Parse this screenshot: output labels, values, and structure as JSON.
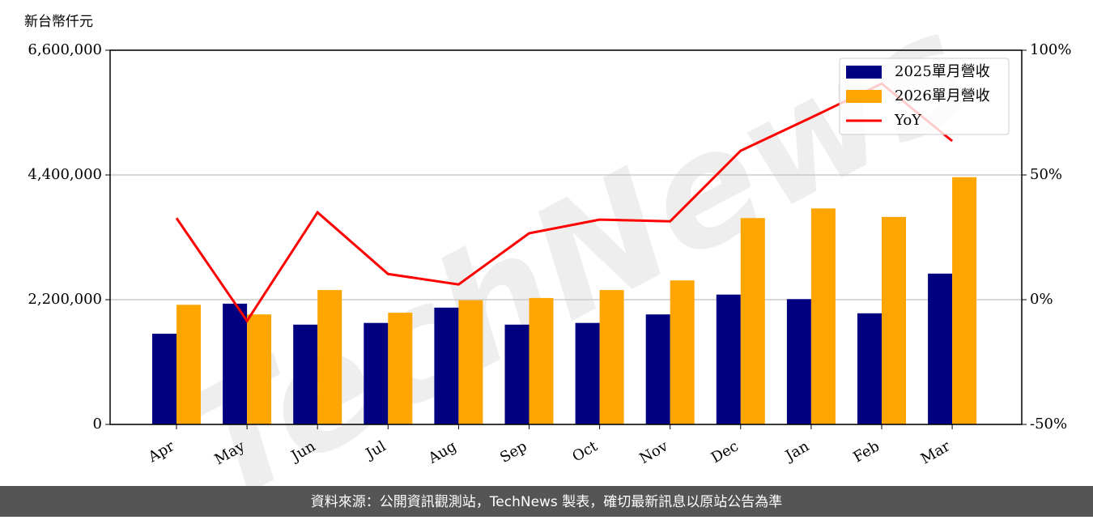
{
  "chart_data": {
    "type": "bar_line",
    "y_label": "新台幣仟元",
    "watermark": "TechNews",
    "categories": [
      "Apr",
      "May",
      "Jun",
      "Jul",
      "Aug",
      "Sep",
      "Oct",
      "Nov",
      "Dec",
      "Jan",
      "Feb",
      "Mar"
    ],
    "series": [
      {
        "name": "2025單月營收",
        "color": "#000080",
        "type": "bar",
        "values": [
          1600000,
          2130000,
          1760000,
          1790000,
          2060000,
          1760000,
          1790000,
          1940000,
          2290000,
          2210000,
          1960000,
          2660000
        ]
      },
      {
        "name": "2026單月營收",
        "color": "#ffa500",
        "type": "bar",
        "values": [
          2110000,
          1940000,
          2370000,
          1970000,
          2190000,
          2230000,
          2370000,
          2540000,
          3640000,
          3810000,
          3660000,
          4360000
        ]
      },
      {
        "name": "YoY",
        "color": "#ff0000",
        "type": "line",
        "axis": "y2",
        "values": [
          32.7,
          -8.5,
          35,
          10.3,
          6.1,
          26.6,
          32.1,
          31.4,
          59.7,
          73,
          86.6,
          63.6
        ]
      }
    ],
    "ylim": [
      0,
      6600000
    ],
    "yticks": [
      0,
      {
        "value": 2200000,
        "label": "2,200,000"
      },
      {
        "value": 4400000,
        "label": "4,400,000"
      },
      {
        "value": 6600000,
        "label": "6,600,000"
      }
    ],
    "y2lim": [
      -50,
      100
    ],
    "y2ticks": [
      {
        "value": -50,
        "label": "-50%"
      },
      {
        "value": 0,
        "label": "0%"
      },
      {
        "value": 50,
        "label": "50%"
      },
      {
        "value": 100,
        "label": "100%"
      }
    ],
    "grid": true,
    "legend": "upper right",
    "footer": "資料來源：公開資訊觀測站，TechNews 製表，確切最新訊息以原站公告為準"
  }
}
